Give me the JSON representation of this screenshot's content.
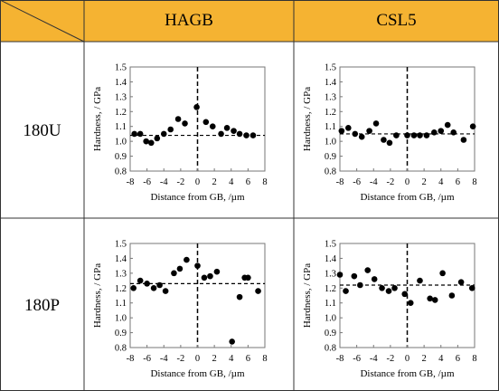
{
  "table": {
    "columns": [
      "HAGB",
      "CSL5"
    ],
    "rows": [
      "180U",
      "180P"
    ],
    "colors": {
      "header": "#f5b332",
      "border": "#333333",
      "marker": "#000000"
    }
  },
  "chart_data": [
    {
      "id": "hagb-180u",
      "type": "scatter",
      "row": "180U",
      "column": "HAGB",
      "xlabel": "Distance from GB, /µm",
      "ylabel": "Hardness, / GPa",
      "xlim": [
        -8,
        8
      ],
      "ylim": [
        0.8,
        1.5
      ],
      "xticks": [
        "-8",
        "-6",
        "-4",
        "-2",
        "0",
        "2",
        "4",
        "6",
        "8"
      ],
      "yticks": [
        "0.8",
        "0.9",
        "1.0",
        "1.1",
        "1.2",
        "1.3",
        "1.4",
        "1.5"
      ],
      "reference_y": 1.04,
      "reference_x": 0,
      "points": [
        [
          -7.5,
          1.05
        ],
        [
          -6.8,
          1.05
        ],
        [
          -6.1,
          1.0
        ],
        [
          -5.5,
          0.99
        ],
        [
          -4.8,
          1.02
        ],
        [
          -4.0,
          1.05
        ],
        [
          -3.2,
          1.08
        ],
        [
          -2.3,
          1.15
        ],
        [
          -1.5,
          1.12
        ],
        [
          -0.1,
          1.23
        ],
        [
          1.0,
          1.13
        ],
        [
          1.8,
          1.1
        ],
        [
          2.8,
          1.05
        ],
        [
          3.5,
          1.09
        ],
        [
          4.3,
          1.07
        ],
        [
          5.0,
          1.05
        ],
        [
          5.8,
          1.04
        ],
        [
          6.6,
          1.04
        ]
      ]
    },
    {
      "id": "csl5-180u",
      "type": "scatter",
      "row": "180U",
      "column": "CSL5",
      "xlabel": "Distance from GB, /µm",
      "ylabel": "Hardness, / GPa",
      "xlim": [
        -8,
        8
      ],
      "ylim": [
        0.8,
        1.5
      ],
      "xticks": [
        "-8",
        "-6",
        "-4",
        "-2",
        "0",
        "2",
        "4",
        "6",
        "8"
      ],
      "yticks": [
        "0.8",
        "0.9",
        "1.0",
        "1.1",
        "1.2",
        "1.3",
        "1.4",
        "1.5"
      ],
      "reference_y": 1.05,
      "reference_x": 0,
      "points": [
        [
          -7.8,
          1.07
        ],
        [
          -7.0,
          1.09
        ],
        [
          -6.2,
          1.05
        ],
        [
          -5.4,
          1.03
        ],
        [
          -4.5,
          1.07
        ],
        [
          -3.7,
          1.12
        ],
        [
          -2.8,
          1.01
        ],
        [
          -2.1,
          0.99
        ],
        [
          -1.3,
          1.04
        ],
        [
          0.0,
          1.04
        ],
        [
          0.8,
          1.04
        ],
        [
          1.5,
          1.04
        ],
        [
          2.3,
          1.04
        ],
        [
          3.2,
          1.06
        ],
        [
          4.0,
          1.07
        ],
        [
          4.8,
          1.11
        ],
        [
          5.5,
          1.06
        ],
        [
          6.7,
          1.01
        ],
        [
          7.8,
          1.1
        ]
      ]
    },
    {
      "id": "hagb-180p",
      "type": "scatter",
      "row": "180P",
      "column": "HAGB",
      "xlabel": "Distance from GB, /µm",
      "ylabel": "Hardness, / GPa",
      "xlim": [
        -8,
        8
      ],
      "ylim": [
        0.8,
        1.5
      ],
      "xticks": [
        "-8",
        "-6",
        "-4",
        "-2",
        "0",
        "2",
        "4",
        "6",
        "8"
      ],
      "yticks": [
        "0.8",
        "0.9",
        "1.0",
        "1.1",
        "1.2",
        "1.3",
        "1.4",
        "1.5"
      ],
      "reference_y": 1.23,
      "reference_x": 0,
      "points": [
        [
          -7.6,
          1.2
        ],
        [
          -6.8,
          1.25
        ],
        [
          -6.0,
          1.23
        ],
        [
          -5.2,
          1.2
        ],
        [
          -4.5,
          1.22
        ],
        [
          -3.8,
          1.18
        ],
        [
          -2.8,
          1.3
        ],
        [
          -2.1,
          1.33
        ],
        [
          -1.3,
          1.39
        ],
        [
          0.0,
          1.35
        ],
        [
          0.8,
          1.27
        ],
        [
          1.5,
          1.28
        ],
        [
          2.3,
          1.31
        ],
        [
          4.1,
          0.84
        ],
        [
          5.0,
          1.14
        ],
        [
          5.6,
          1.27
        ],
        [
          6.0,
          1.27
        ],
        [
          7.2,
          1.18
        ]
      ]
    },
    {
      "id": "csl5-180p",
      "type": "scatter",
      "row": "180P",
      "column": "CSL5",
      "xlabel": "Distance from GB, /µm",
      "ylabel": "Hardness, / GPa",
      "xlim": [
        -8,
        8
      ],
      "ylim": [
        0.8,
        1.5
      ],
      "xticks": [
        "-8",
        "-6",
        "-4",
        "-2",
        "0",
        "2",
        "4",
        "6",
        "8"
      ],
      "yticks": [
        "0.8",
        "0.9",
        "1.0",
        "1.1",
        "1.2",
        "1.3",
        "1.4",
        "1.5"
      ],
      "reference_y": 1.22,
      "reference_x": 0,
      "points": [
        [
          -8.0,
          1.29
        ],
        [
          -7.3,
          1.18
        ],
        [
          -6.3,
          1.28
        ],
        [
          -5.6,
          1.22
        ],
        [
          -4.7,
          1.32
        ],
        [
          -3.9,
          1.26
        ],
        [
          -3.0,
          1.2
        ],
        [
          -2.2,
          1.18
        ],
        [
          -1.5,
          1.2
        ],
        [
          -0.3,
          1.16
        ],
        [
          0.4,
          1.1
        ],
        [
          1.5,
          1.25
        ],
        [
          2.7,
          1.13
        ],
        [
          3.3,
          1.12
        ],
        [
          4.2,
          1.3
        ],
        [
          5.3,
          1.15
        ],
        [
          6.4,
          1.24
        ],
        [
          7.7,
          1.2
        ]
      ]
    }
  ]
}
